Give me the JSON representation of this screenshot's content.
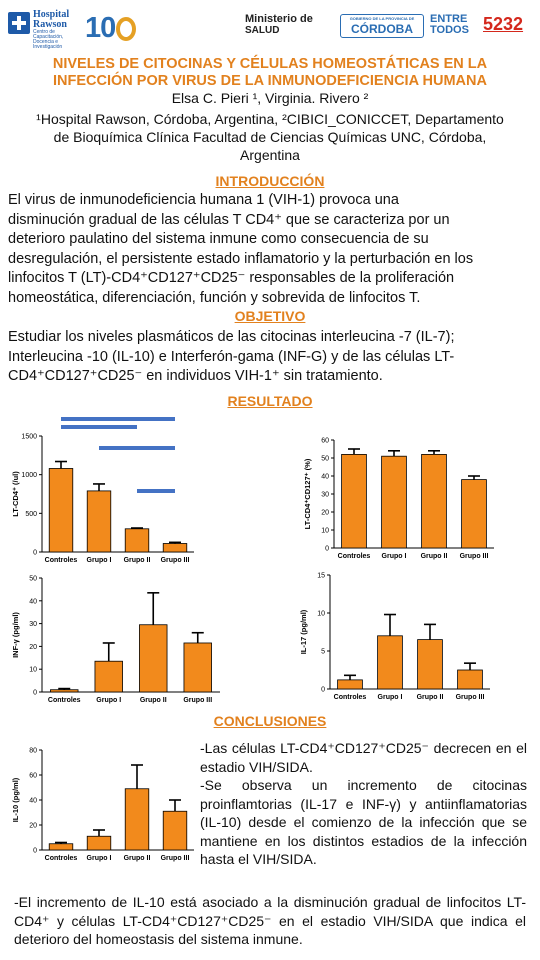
{
  "header": {
    "rawson_name_1": "Hospital",
    "rawson_name_2": "Rawson",
    "rawson_tagline": "Centro de Capacitación, Docencia e Investigación",
    "anniversary": "10",
    "ministerio_1": "Ministerio de",
    "ministerio_2": "SALUD",
    "gobierno": "GOBIERNO DE LA PROVINCIA DE",
    "cordoba": "CÓRDOBA",
    "entre_1": "ENTRE",
    "entre_2": "TODOS",
    "poster_number": "5232"
  },
  "title_line1": "NIVELES DE CITOCINAS Y CÉLULAS HOMEOSTÁTICAS EN LA",
  "title_line2": "INFECCIÓN POR VIRUS DE LA INMUNODEFICIENCIA HUMANA",
  "authors": "Elsa  C. Pieri ¹,  Virginia. Rivero ²",
  "affil_line1": "¹Hospital Rawson, Córdoba, Argentina, ²CIBICI_CONICCET,  Departamento",
  "affil_line2": "de Bioquímica Clínica  Facultad de Ciencias Químicas  UNC, Córdoba,",
  "affil_line3": "Argentina",
  "sections": {
    "intro": "INTRODUCCIÓN",
    "objective": "OBJETIVO",
    "results": "RESULTADO",
    "conclusions": "CONCLUSIONES"
  },
  "intro": {
    "l1": "El  virus  de  inmunodeficiencia  humana  1  (VIH-1)  provoca  una",
    "l2": "disminución gradual de las células T CD4⁺ que se caracteriza por un",
    "l3": "deterioro paulatino del sistema inmune como consecuencia de su",
    "l4": "desregulación, el persistente estado inflamatorio y la perturbación en los",
    "l5": "linfocitos T (LT)-CD4⁺CD127⁺CD25⁻ responsables de la proliferación",
    "l6": "homeostática, diferenciación, función y sobrevida de linfocitos T."
  },
  "objective": {
    "l1": "Estudiar los niveles plasmáticos de las citocinas interleucina -7 (IL-7);",
    "l2": "Interleucina -10 (IL-10) e Interferón-gama (INF-G) y de las células  LT-",
    "l3": "CD4⁺CD127⁺CD25⁻ en individuos VIH-1⁺ sin tratamiento."
  },
  "conclusions": {
    "c1": "-Las células LT-CD4⁺CD127⁺CD25⁻ decrecen en el estadio VIH/SIDA.",
    "c2": "-Se observa un incremento de citocinas proinflamtorias (IL-17 e INF-γ) y antiinflamatorias (IL-10) desde el comienzo de la infección que se mantiene en los distintos estadios de la infección hasta el VIH/SIDA.",
    "final": "-El incremento de IL-10 está asociado a la disminución gradual de linfocitos LT-CD4⁺ y células LT-CD4⁺CD127⁺CD25⁻ en el estadio VIH/SIDA que indica el deterioro del homeostasis del sistema inmune."
  },
  "colors": {
    "bar": "#f28a1c",
    "sig_line": "#4472c4",
    "heading": "#e2811e",
    "poster_number": "#d4281c"
  },
  "chart_data": [
    {
      "type": "bar",
      "ylabel": "LT-CD4⁺ (/ul)",
      "categories": [
        "Controles",
        "Grupo I",
        "Grupo II",
        "Grupo III"
      ],
      "values": [
        1080,
        790,
        300,
        110
      ],
      "errors": [
        90,
        90,
        10,
        15
      ],
      "ylim": [
        0,
        1500
      ],
      "yticks": [
        "0",
        "500",
        "1000",
        "1500"
      ],
      "significance": [
        [
          0,
          3
        ],
        [
          0,
          2
        ],
        [
          1,
          3
        ],
        [
          2,
          3
        ]
      ]
    },
    {
      "type": "bar",
      "ylabel": "LT-CD4⁺CD127⁺ (%)",
      "categories": [
        "Controles",
        "Grupo I",
        "Grupo II",
        "Grupo III"
      ],
      "values": [
        52,
        51,
        52,
        38
      ],
      "errors": [
        3,
        3,
        2,
        2
      ],
      "ylim": [
        0,
        60
      ],
      "yticks": [
        "0",
        "10",
        "20",
        "30",
        "40",
        "50",
        "60"
      ]
    },
    {
      "type": "bar",
      "ylabel": "INF-γ (pg/ml)",
      "categories": [
        "Controles",
        "Grupo I",
        "Grupo II",
        "Grupo III"
      ],
      "values": [
        1,
        13.5,
        29.5,
        21.5
      ],
      "errors": [
        0.5,
        8,
        14,
        4.5
      ],
      "ylim": [
        0,
        50
      ],
      "yticks": [
        "0",
        "10",
        "20",
        "30",
        "40",
        "50"
      ]
    },
    {
      "type": "bar",
      "ylabel": "IL-17 (pg/ml)",
      "categories": [
        "Controles",
        "Grupo I",
        "Grupo II",
        "Grupo III"
      ],
      "values": [
        1.2,
        7,
        6.5,
        2.5
      ],
      "errors": [
        0.6,
        2.8,
        2,
        0.9
      ],
      "ylim": [
        0,
        15
      ],
      "yticks": [
        "0",
        "5",
        "10",
        "15"
      ]
    },
    {
      "type": "bar",
      "ylabel": "IL-10 (pg/ml)",
      "categories": [
        "Controles",
        "Grupo I",
        "Grupo II",
        "Grupo III"
      ],
      "values": [
        5,
        11,
        49,
        31
      ],
      "errors": [
        1,
        5,
        19,
        9
      ],
      "ylim": [
        0,
        80
      ],
      "yticks": [
        "0",
        "20",
        "40",
        "60",
        "80"
      ]
    }
  ]
}
